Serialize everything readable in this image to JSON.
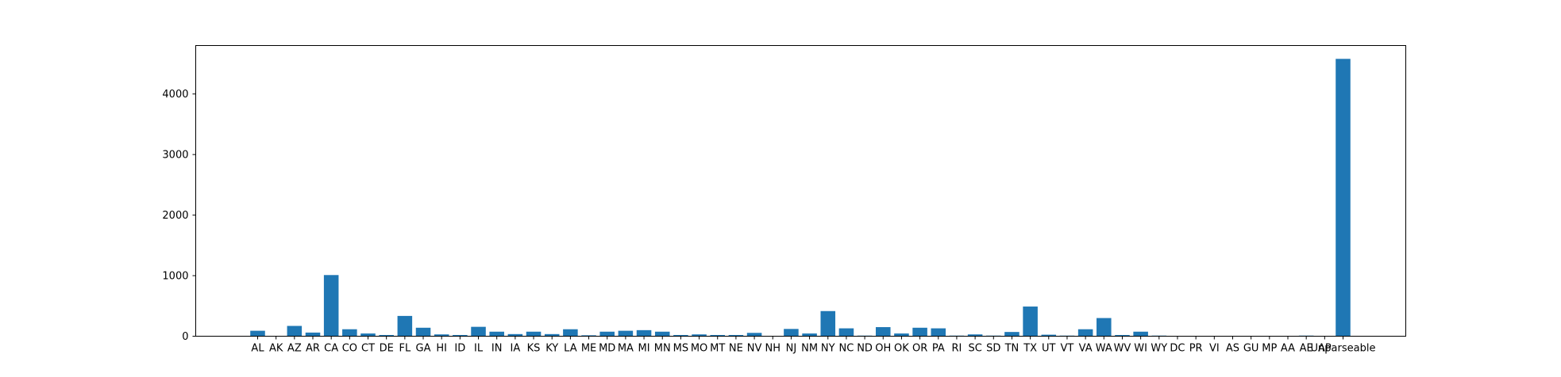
{
  "chart_data": {
    "type": "bar",
    "title": "",
    "xlabel": "",
    "ylabel": "",
    "ylim": [
      0,
      4800
    ],
    "yticks": [
      0,
      1000,
      2000,
      3000,
      4000
    ],
    "grid": false,
    "bar_color": "#1f77b4",
    "categories": [
      "AL",
      "AK",
      "AZ",
      "AR",
      "CA",
      "CO",
      "CT",
      "DE",
      "FL",
      "GA",
      "HI",
      "ID",
      "IL",
      "IN",
      "IA",
      "KS",
      "KY",
      "LA",
      "ME",
      "MD",
      "MA",
      "MI",
      "MN",
      "MS",
      "MO",
      "MT",
      "NE",
      "NV",
      "NH",
      "NJ",
      "NM",
      "NY",
      "NC",
      "ND",
      "OH",
      "OK",
      "OR",
      "PA",
      "RI",
      "SC",
      "SD",
      "TN",
      "TX",
      "UT",
      "VT",
      "VA",
      "WA",
      "WV",
      "WI",
      "WY",
      "DC",
      "PR",
      "VI",
      "AS",
      "GU",
      "MP",
      "AA",
      "AE",
      "AP",
      "Unparseable"
    ],
    "values": [
      90,
      5,
      170,
      60,
      1010,
      115,
      45,
      20,
      335,
      140,
      30,
      20,
      155,
      75,
      35,
      75,
      35,
      115,
      15,
      75,
      90,
      100,
      75,
      20,
      30,
      20,
      20,
      55,
      5,
      120,
      45,
      415,
      130,
      10,
      150,
      45,
      140,
      130,
      10,
      30,
      10,
      70,
      490,
      25,
      10,
      115,
      300,
      20,
      75,
      10,
      5,
      5,
      2,
      5,
      5,
      2,
      2,
      10,
      2,
      4580
    ]
  }
}
